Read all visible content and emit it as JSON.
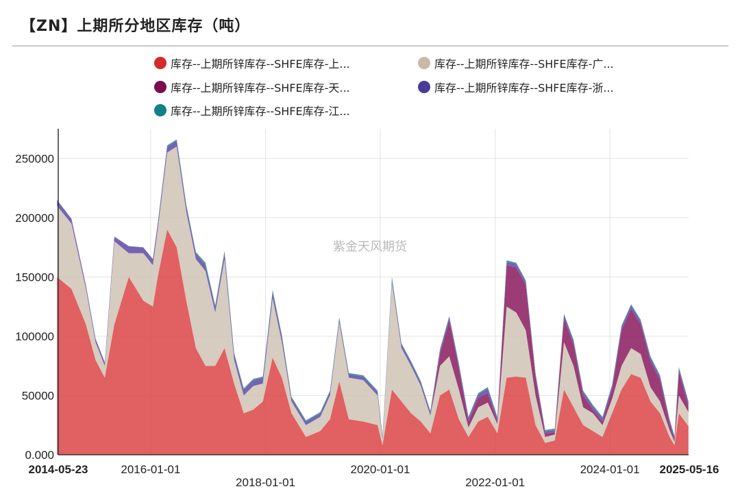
{
  "title": "【ZN】上期所分地区库存（吨）",
  "watermark": "紫金天风期货",
  "colors": {
    "series": [
      "#d9383a",
      "#cfc3b4",
      "#8a1a5e",
      "#5b4aa6",
      "#2a8a8c"
    ],
    "grid": "#e3e3e3",
    "axis": "#333333"
  },
  "legend": [
    {
      "label": "库存--上期所锌库存--SHFE库存-上...",
      "color": "#d22b2b"
    },
    {
      "label": "库存--上期所锌库存--SHFE库存-广...",
      "color": "#c9b9a6"
    },
    {
      "label": "库存--上期所锌库存--SHFE库存-天...",
      "color": "#7a0d52"
    },
    {
      "label": "库存--上期所锌库存--SHFE库存-浙...",
      "color": "#4a3a9a"
    },
    {
      "label": "库存--上期所锌库存--SHFE库存-江...",
      "color": "#12808a"
    }
  ],
  "chart_data": {
    "type": "area",
    "stacked": true,
    "title": "【ZN】上期所分地区库存（吨）",
    "xlabel": "",
    "ylabel": "",
    "x_range": [
      "2014-05-23",
      "2025-05-16"
    ],
    "ylim": [
      0,
      275000
    ],
    "y_ticks": [
      {
        "value": 0,
        "label": "0.000"
      },
      {
        "value": 50000,
        "label": "50000"
      },
      {
        "value": 100000,
        "label": "100000"
      },
      {
        "value": 150000,
        "label": "150000"
      },
      {
        "value": 200000,
        "label": "200000"
      },
      {
        "value": 250000,
        "label": "250000"
      }
    ],
    "x_ticks": [
      {
        "date": "2014-05-23",
        "label": "2014-05-23",
        "bold": true,
        "row": 1
      },
      {
        "date": "2016-01-01",
        "label": "2016-01-01",
        "bold": false,
        "row": 1
      },
      {
        "date": "2018-01-01",
        "label": "2018-01-01",
        "bold": false,
        "row": 2
      },
      {
        "date": "2020-01-01",
        "label": "2020-01-01",
        "bold": false,
        "row": 1
      },
      {
        "date": "2022-01-01",
        "label": "2022-01-01",
        "bold": false,
        "row": 2
      },
      {
        "date": "2024-01-01",
        "label": "2024-01-01",
        "bold": false,
        "row": 1
      },
      {
        "date": "2025-05-16",
        "label": "2025-05-16",
        "bold": true,
        "row": 1
      }
    ],
    "x": [
      "2014-05",
      "2014-08",
      "2014-11",
      "2015-01",
      "2015-03",
      "2015-05",
      "2015-08",
      "2015-11",
      "2016-01",
      "2016-02",
      "2016-04",
      "2016-06",
      "2016-08",
      "2016-10",
      "2016-12",
      "2017-02",
      "2017-04",
      "2017-06",
      "2017-08",
      "2017-10",
      "2017-12",
      "2018-02",
      "2018-04",
      "2018-06",
      "2018-09",
      "2018-12",
      "2019-02",
      "2019-04",
      "2019-06",
      "2019-09",
      "2019-12",
      "2020-01",
      "2020-03",
      "2020-05",
      "2020-07",
      "2020-09",
      "2020-11",
      "2021-01",
      "2021-03",
      "2021-05",
      "2021-07",
      "2021-09",
      "2021-11",
      "2022-01",
      "2022-03",
      "2022-05",
      "2022-07",
      "2022-09",
      "2022-11",
      "2023-01",
      "2023-03",
      "2023-05",
      "2023-07",
      "2023-09",
      "2023-11",
      "2024-01",
      "2024-03",
      "2024-05",
      "2024-07",
      "2024-09",
      "2024-11",
      "2025-01",
      "2025-02",
      "2025-03",
      "2025-05"
    ],
    "series": [
      {
        "name": "库存--上期所锌库存--SHFE库存-上...",
        "values": [
          150000,
          140000,
          110000,
          80000,
          65000,
          110000,
          150000,
          130000,
          125000,
          150000,
          190000,
          175000,
          130000,
          90000,
          75000,
          75000,
          90000,
          60000,
          35000,
          38000,
          45000,
          82000,
          65000,
          35000,
          15000,
          20000,
          30000,
          62000,
          30000,
          28000,
          25000,
          8000,
          55000,
          45000,
          35000,
          28000,
          18000,
          50000,
          55000,
          30000,
          15000,
          28000,
          32000,
          18000,
          65000,
          66000,
          65000,
          25000,
          10000,
          12000,
          55000,
          40000,
          25000,
          20000,
          15000,
          35000,
          55000,
          68000,
          65000,
          45000,
          35000,
          15000,
          8000,
          35000,
          24000
        ]
      },
      {
        "name": "库存--上期所锌库存--SHFE库存-广...",
        "values": [
          60000,
          55000,
          30000,
          15000,
          10000,
          70000,
          20000,
          40000,
          35000,
          40000,
          65000,
          85000,
          75000,
          75000,
          80000,
          45000,
          75000,
          20000,
          15000,
          20000,
          15000,
          50000,
          30000,
          10000,
          10000,
          12000,
          20000,
          50000,
          35000,
          35000,
          25000,
          5000,
          90000,
          45000,
          40000,
          30000,
          15000,
          25000,
          28000,
          25000,
          8000,
          12000,
          12000,
          8000,
          60000,
          54000,
          40000,
          25000,
          5000,
          5000,
          40000,
          35000,
          15000,
          15000,
          10000,
          12000,
          20000,
          22000,
          20000,
          12000,
          10000,
          6000,
          3000,
          15000,
          12000
        ]
      },
      {
        "name": "库存--上期所锌库存--SHFE库存-天...",
        "values": [
          0,
          0,
          0,
          0,
          0,
          0,
          0,
          0,
          0,
          0,
          0,
          0,
          0,
          0,
          0,
          0,
          0,
          0,
          0,
          0,
          0,
          0,
          0,
          0,
          0,
          0,
          0,
          0,
          0,
          0,
          0,
          0,
          0,
          0,
          0,
          0,
          0,
          10000,
          30000,
          18000,
          5000,
          8000,
          8000,
          2000,
          35000,
          38000,
          38000,
          15000,
          3000,
          2000,
          20000,
          18000,
          10000,
          3000,
          3000,
          8000,
          30000,
          33000,
          25000,
          22000,
          18000,
          5000,
          2000,
          20000,
          5000
        ]
      },
      {
        "name": "库存--上期所锌库存--SHFE库存-浙...",
        "values": [
          5000,
          4000,
          3000,
          3000,
          3000,
          4000,
          6000,
          5000,
          5000,
          5000,
          5000,
          5000,
          5000,
          5000,
          5000,
          5000,
          5000,
          5000,
          5000,
          5000,
          5000,
          5000,
          5000,
          3000,
          3000,
          3000,
          3000,
          3000,
          3000,
          3000,
          3000,
          2000,
          3000,
          3000,
          3000,
          3000,
          3000,
          3000,
          3000,
          3000,
          3000,
          3000,
          4000,
          3000,
          3000,
          3000,
          3000,
          3000,
          2000,
          2000,
          3000,
          3000,
          3000,
          3000,
          3000,
          3000,
          3000,
          3000,
          3000,
          3000,
          3000,
          3000,
          2000,
          3000,
          3000
        ]
      },
      {
        "name": "库存--上期所锌库存--SHFE库存-江...",
        "values": [
          0,
          0,
          0,
          0,
          0,
          0,
          0,
          0,
          0,
          0,
          1000,
          1000,
          1000,
          1000,
          2000,
          1000,
          2000,
          1000,
          1000,
          1000,
          1000,
          2000,
          1000,
          1000,
          1000,
          1000,
          1000,
          1000,
          1000,
          1000,
          1000,
          1000,
          2000,
          1000,
          1000,
          1000,
          1000,
          1000,
          1000,
          1000,
          1000,
          1000,
          1000,
          1000,
          1000,
          1000,
          1000,
          1000,
          1000,
          1000,
          1000,
          1000,
          1000,
          1000,
          1000,
          1000,
          1000,
          1000,
          1000,
          1000,
          1000,
          1000,
          1000,
          1000,
          1000
        ]
      }
    ]
  }
}
